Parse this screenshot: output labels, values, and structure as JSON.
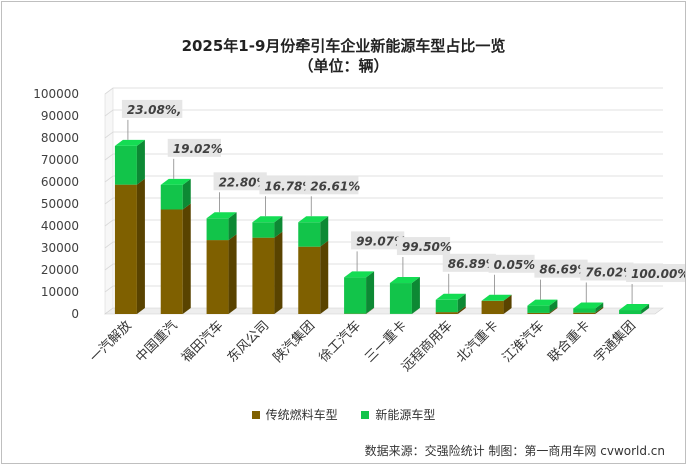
{
  "title": "2025年1-9月份牵引车企业新能源车型占比一览",
  "subtitle": "（单位：辆）",
  "source": "数据来源：交强险统计    制图：第一商用车网 cvworld.cn",
  "colors": {
    "traditional": "#7f6000",
    "nev": "#12c44a",
    "label_bg": "#e6e6e6",
    "grid": "#d9d9d9"
  },
  "chart_data": {
    "type": "bar",
    "stacked": true,
    "categories": [
      "一汽解放",
      "中国重汽",
      "福田汽车",
      "东风公司",
      "陕汽集团",
      "徐工汽车",
      "三一重卡",
      "远程商用车",
      "北汽重卡",
      "江淮汽车",
      "联合重卡",
      "宇通集团"
    ],
    "series": [
      {
        "name": "传统燃料车型",
        "values": [
          58800,
          47500,
          33600,
          34700,
          30600,
          150,
          70,
          850,
          6000,
          500,
          600,
          0
        ]
      },
      {
        "name": "新能源车型",
        "values": [
          17600,
          11200,
          9900,
          7000,
          11100,
          16500,
          14000,
          5600,
          3,
          3300,
          1900,
          1800
        ]
      }
    ],
    "data_labels": [
      "23.08%,",
      "19.02%",
      "22.80%",
      "16.78%",
      "26.61%",
      "99.07%",
      "99.50%",
      "86.89%",
      "0.05%",
      "86.69%",
      "76.02%",
      "100.00%"
    ],
    "yticks": [
      "0",
      "10000",
      "20000",
      "30000",
      "40000",
      "50000",
      "60000",
      "70000",
      "80000",
      "90000",
      "100000"
    ],
    "ylim": [
      0,
      100000
    ],
    "legend_position": "bottom"
  }
}
